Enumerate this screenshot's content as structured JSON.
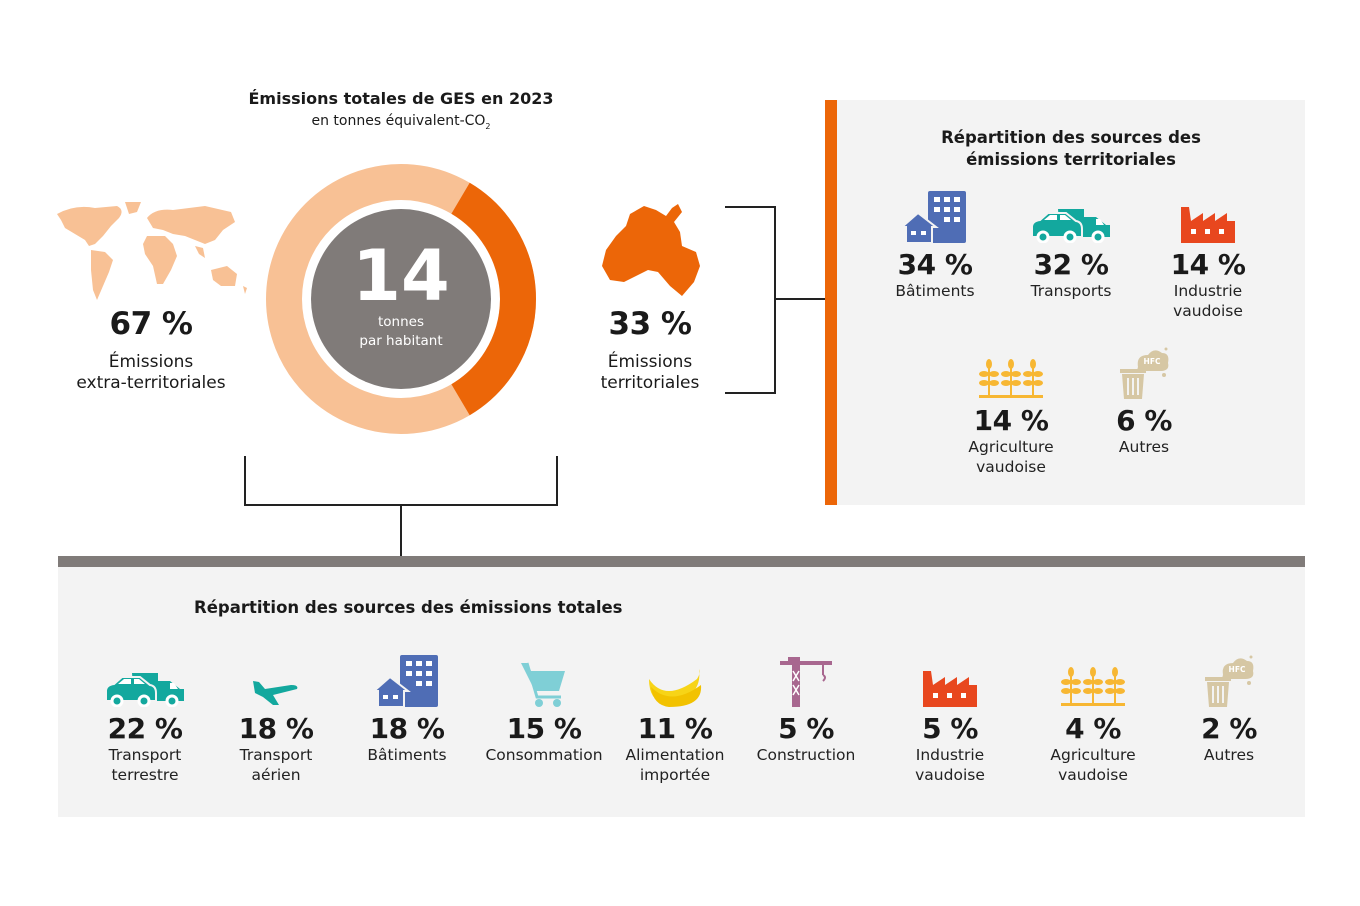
{
  "header": {
    "title": "Émissions totales de GES en 2023",
    "subtitle": "en tonnes équivalent-CO",
    "subtitle_sub": "2"
  },
  "donut": {
    "value": "14",
    "unit_line1": "tonnes",
    "unit_line2": "par habitant",
    "extra_share": 67,
    "territorial_share": 33,
    "colors": {
      "extra": "#f8c195",
      "territorial": "#ec6608",
      "center": "#807b79"
    }
  },
  "extra": {
    "pct": "67 %",
    "label1": "Émissions",
    "label2": "extra-territoriales"
  },
  "territorial": {
    "pct": "33 %",
    "label1": "Émissions",
    "label2": "territoriales"
  },
  "territorial_panel": {
    "title1": "Répartition des sources des",
    "title2": "émissions territoriales",
    "items": [
      {
        "pct": "34 %",
        "l1": "Bâtiments",
        "l2": "",
        "icon": "buildings-icon"
      },
      {
        "pct": "32 %",
        "l1": "Transports",
        "l2": "",
        "icon": "vehicles-icon"
      },
      {
        "pct": "14 %",
        "l1": "Industrie",
        "l2": "vaudoise",
        "icon": "factory-icon"
      },
      {
        "pct": "14 %",
        "l1": "Agriculture",
        "l2": "vaudoise",
        "icon": "wheat-icon"
      },
      {
        "pct": "6 %",
        "l1": "Autres",
        "l2": "",
        "icon": "trash-hfc-icon"
      }
    ]
  },
  "total_panel": {
    "title": "Répartition des sources des émissions totales",
    "items": [
      {
        "pct": "22 %",
        "l1": "Transport",
        "l2": "terrestre",
        "icon": "vehicles-icon"
      },
      {
        "pct": "18 %",
        "l1": "Transport",
        "l2": "aérien",
        "icon": "plane-icon"
      },
      {
        "pct": "18 %",
        "l1": "Bâtiments",
        "l2": "",
        "icon": "buildings-icon"
      },
      {
        "pct": "15 %",
        "l1": "Consommation",
        "l2": "",
        "icon": "cart-icon"
      },
      {
        "pct": "11 %",
        "l1": "Alimentation",
        "l2": "importée",
        "icon": "banana-icon"
      },
      {
        "pct": "5 %",
        "l1": "Construction",
        "l2": "",
        "icon": "crane-icon"
      },
      {
        "pct": "5 %",
        "l1": "Industrie",
        "l2": "vaudoise",
        "icon": "factory-icon"
      },
      {
        "pct": "4 %",
        "l1": "Agriculture",
        "l2": "vaudoise",
        "icon": "wheat-icon"
      },
      {
        "pct": "2 %",
        "l1": "Autres",
        "l2": "",
        "icon": "trash-hfc-icon"
      }
    ]
  },
  "hfc_label": "HFC"
}
